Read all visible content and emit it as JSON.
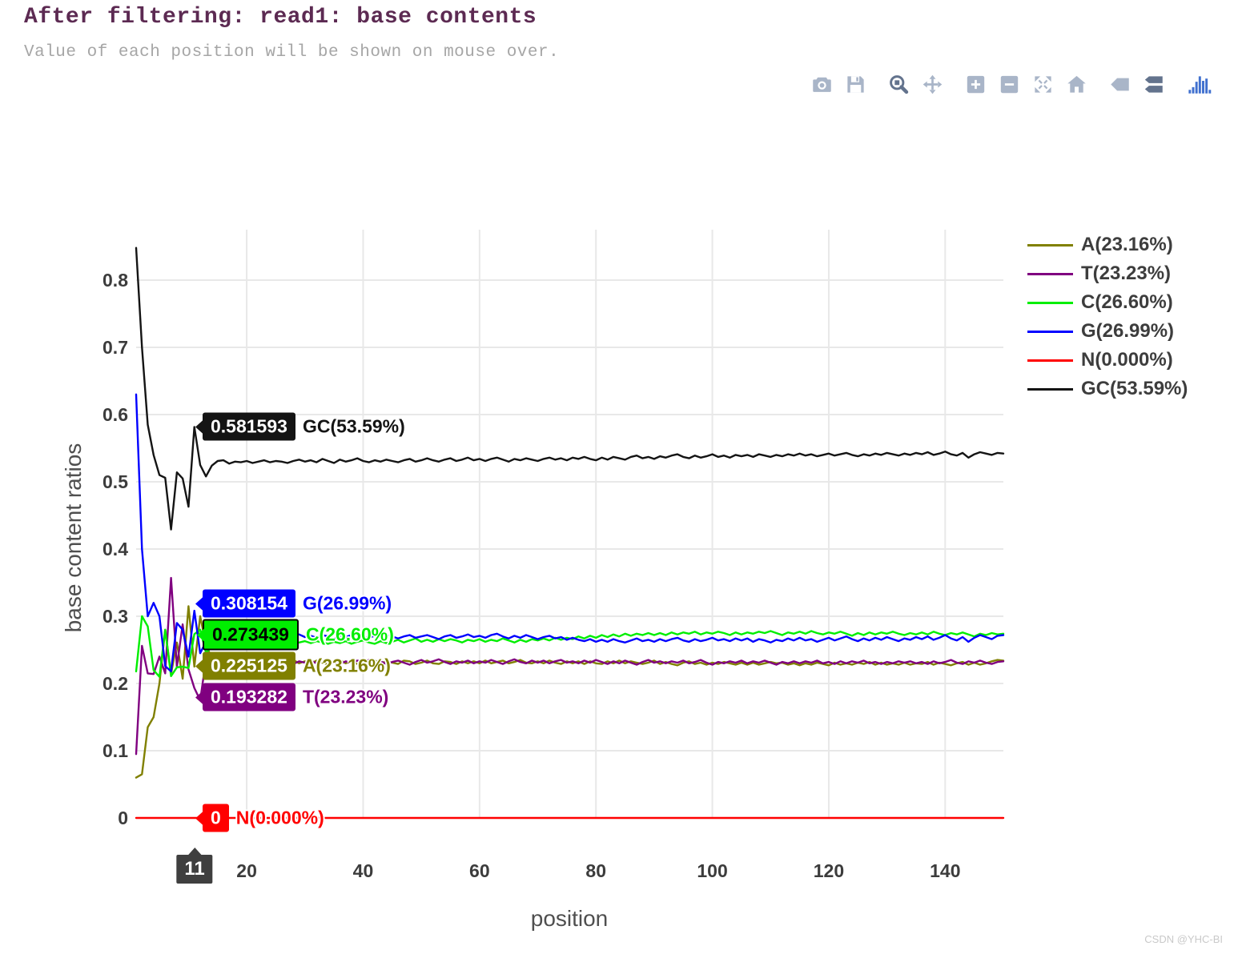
{
  "page": {
    "title": "After filtering: read1: base contents",
    "subtitle": "Value of each position will be shown on mouse over.",
    "watermark": "CSDN @YHC-BI"
  },
  "modebar": {
    "icons": [
      "camera-icon",
      "save-icon",
      "zoom-icon",
      "pan-icon",
      "zoom-in-icon",
      "zoom-out-icon",
      "autoscale-icon",
      "home-icon",
      "hover-closest-icon",
      "hover-compare-icon",
      "plotly-logo-icon"
    ],
    "active_icons": [
      "zoom-icon",
      "hover-compare-icon"
    ]
  },
  "chart_data": {
    "type": "line",
    "title": "After filtering: read1: base contents",
    "xlabel": "position",
    "ylabel": "base content ratios",
    "x_range": [
      1,
      150
    ],
    "ylim": [
      0,
      0.875
    ],
    "x_ticks": [
      20,
      40,
      60,
      80,
      100,
      120,
      140
    ],
    "y_ticks": [
      0,
      0.1,
      0.2,
      0.3,
      0.4,
      0.5,
      0.6,
      0.7,
      0.8
    ],
    "grid": true,
    "legend_position": "right",
    "series": [
      {
        "name": "A",
        "label": "A(23.16%)",
        "color": "#808000",
        "values": [
          0.06,
          0.065,
          0.135,
          0.15,
          0.2,
          0.28,
          0.214,
          0.261,
          0.207,
          0.315,
          0.2251,
          0.3,
          0.257,
          0.238,
          0.235,
          0.234,
          0.23,
          0.235,
          0.231,
          0.233,
          0.23,
          0.232,
          0.235,
          0.231,
          0.234,
          0.23,
          0.233,
          0.235,
          0.23,
          0.233,
          0.23,
          0.234,
          0.231,
          0.228,
          0.233,
          0.235,
          0.23,
          0.233,
          0.229,
          0.233,
          0.23,
          0.234,
          0.23,
          0.233,
          0.231,
          0.229,
          0.234,
          0.233,
          0.229,
          0.231,
          0.234,
          0.23,
          0.229,
          0.233,
          0.232,
          0.229,
          0.233,
          0.23,
          0.233,
          0.23,
          0.234,
          0.23,
          0.232,
          0.234,
          0.23,
          0.232,
          0.235,
          0.231,
          0.23,
          0.233,
          0.23,
          0.234,
          0.231,
          0.229,
          0.233,
          0.23,
          0.233,
          0.229,
          0.233,
          0.23,
          0.229,
          0.233,
          0.23,
          0.234,
          0.23,
          0.233,
          0.231,
          0.229,
          0.231,
          0.234,
          0.229,
          0.232,
          0.229,
          0.227,
          0.231,
          0.233,
          0.229,
          0.231,
          0.228,
          0.231,
          0.229,
          0.232,
          0.23,
          0.228,
          0.231,
          0.228,
          0.231,
          0.228,
          0.23,
          0.232,
          0.23,
          0.231,
          0.228,
          0.23,
          0.227,
          0.23,
          0.228,
          0.231,
          0.229,
          0.227,
          0.231,
          0.228,
          0.23,
          0.228,
          0.231,
          0.229,
          0.232,
          0.228,
          0.231,
          0.228,
          0.23,
          0.228,
          0.231,
          0.228,
          0.23,
          0.229,
          0.232,
          0.228,
          0.231,
          0.229,
          0.227,
          0.23,
          0.232,
          0.228,
          0.231,
          0.228,
          0.23,
          0.233,
          0.235,
          0.234
        ]
      },
      {
        "name": "T",
        "label": "T(23.23%)",
        "color": "#800080",
        "values": [
          0.095,
          0.256,
          0.215,
          0.214,
          0.24,
          0.215,
          0.357,
          0.225,
          0.288,
          0.221,
          0.1933,
          0.175,
          0.235,
          0.238,
          0.234,
          0.232,
          0.236,
          0.231,
          0.234,
          0.23,
          0.233,
          0.235,
          0.23,
          0.233,
          0.231,
          0.234,
          0.232,
          0.229,
          0.233,
          0.231,
          0.234,
          0.23,
          0.233,
          0.235,
          0.231,
          0.229,
          0.233,
          0.23,
          0.234,
          0.232,
          0.235,
          0.231,
          0.233,
          0.229,
          0.232,
          0.234,
          0.231,
          0.228,
          0.232,
          0.235,
          0.231,
          0.233,
          0.236,
          0.232,
          0.229,
          0.233,
          0.231,
          0.234,
          0.23,
          0.233,
          0.231,
          0.235,
          0.232,
          0.229,
          0.233,
          0.236,
          0.232,
          0.23,
          0.234,
          0.231,
          0.234,
          0.23,
          0.233,
          0.235,
          0.231,
          0.233,
          0.23,
          0.234,
          0.231,
          0.235,
          0.232,
          0.229,
          0.233,
          0.23,
          0.234,
          0.231,
          0.228,
          0.232,
          0.235,
          0.231,
          0.233,
          0.23,
          0.233,
          0.231,
          0.234,
          0.23,
          0.232,
          0.235,
          0.231,
          0.228,
          0.232,
          0.23,
          0.233,
          0.231,
          0.234,
          0.23,
          0.233,
          0.231,
          0.234,
          0.231,
          0.228,
          0.232,
          0.23,
          0.233,
          0.23,
          0.233,
          0.231,
          0.234,
          0.23,
          0.232,
          0.229,
          0.233,
          0.23,
          0.233,
          0.231,
          0.234,
          0.23,
          0.232,
          0.229,
          0.232,
          0.23,
          0.233,
          0.231,
          0.233,
          0.23,
          0.232,
          0.229,
          0.233,
          0.23,
          0.232,
          0.235,
          0.231,
          0.229,
          0.233,
          0.231,
          0.234,
          0.231,
          0.229,
          0.232,
          0.233
        ]
      },
      {
        "name": "C",
        "label": "C(26.60%)",
        "color": "#00ee00",
        "values": [
          0.218,
          0.3,
          0.285,
          0.22,
          0.21,
          0.28,
          0.211,
          0.224,
          0.225,
          0.223,
          0.2734,
          0.28,
          0.246,
          0.254,
          0.259,
          0.261,
          0.258,
          0.26,
          0.257,
          0.261,
          0.259,
          0.263,
          0.26,
          0.258,
          0.262,
          0.259,
          0.262,
          0.258,
          0.261,
          0.263,
          0.26,
          0.263,
          0.261,
          0.259,
          0.262,
          0.26,
          0.263,
          0.259,
          0.262,
          0.264,
          0.261,
          0.259,
          0.263,
          0.26,
          0.262,
          0.265,
          0.261,
          0.264,
          0.267,
          0.262,
          0.265,
          0.262,
          0.266,
          0.263,
          0.266,
          0.264,
          0.261,
          0.265,
          0.263,
          0.266,
          0.262,
          0.265,
          0.263,
          0.267,
          0.264,
          0.261,
          0.265,
          0.262,
          0.266,
          0.264,
          0.267,
          0.264,
          0.268,
          0.265,
          0.268,
          0.266,
          0.27,
          0.267,
          0.271,
          0.268,
          0.272,
          0.269,
          0.273,
          0.27,
          0.274,
          0.271,
          0.274,
          0.272,
          0.275,
          0.272,
          0.275,
          0.272,
          0.276,
          0.273,
          0.276,
          0.274,
          0.277,
          0.273,
          0.276,
          0.274,
          0.277,
          0.275,
          0.272,
          0.276,
          0.273,
          0.276,
          0.274,
          0.277,
          0.275,
          0.278,
          0.275,
          0.272,
          0.276,
          0.274,
          0.277,
          0.274,
          0.278,
          0.275,
          0.273,
          0.276,
          0.274,
          0.277,
          0.274,
          0.271,
          0.275,
          0.272,
          0.276,
          0.273,
          0.276,
          0.274,
          0.277,
          0.274,
          0.272,
          0.275,
          0.273,
          0.276,
          0.273,
          0.277,
          0.274,
          0.272,
          0.275,
          0.273,
          0.276,
          0.273,
          0.27,
          0.274,
          0.272,
          0.275,
          0.273,
          0.274
        ]
      },
      {
        "name": "G",
        "label": "G(26.99%)",
        "color": "#0000ff",
        "values": [
          0.63,
          0.4,
          0.3,
          0.32,
          0.3,
          0.226,
          0.218,
          0.29,
          0.28,
          0.24,
          0.3082,
          0.245,
          0.262,
          0.27,
          0.272,
          0.27,
          0.268,
          0.272,
          0.269,
          0.273,
          0.27,
          0.268,
          0.271,
          0.269,
          0.272,
          0.27,
          0.267,
          0.271,
          0.273,
          0.269,
          0.271,
          0.268,
          0.272,
          0.27,
          0.267,
          0.271,
          0.269,
          0.272,
          0.274,
          0.27,
          0.268,
          0.271,
          0.269,
          0.272,
          0.27,
          0.267,
          0.27,
          0.272,
          0.268,
          0.27,
          0.272,
          0.269,
          0.266,
          0.27,
          0.272,
          0.268,
          0.27,
          0.273,
          0.269,
          0.271,
          0.268,
          0.272,
          0.274,
          0.27,
          0.267,
          0.271,
          0.268,
          0.272,
          0.269,
          0.266,
          0.269,
          0.271,
          0.267,
          0.269,
          0.265,
          0.268,
          0.265,
          0.263,
          0.266,
          0.262,
          0.265,
          0.262,
          0.266,
          0.263,
          0.261,
          0.264,
          0.267,
          0.263,
          0.265,
          0.262,
          0.266,
          0.263,
          0.266,
          0.268,
          0.264,
          0.262,
          0.266,
          0.263,
          0.265,
          0.268,
          0.264,
          0.266,
          0.263,
          0.267,
          0.264,
          0.267,
          0.262,
          0.266,
          0.264,
          0.261,
          0.265,
          0.263,
          0.267,
          0.264,
          0.268,
          0.264,
          0.266,
          0.262,
          0.265,
          0.268,
          0.264,
          0.267,
          0.27,
          0.266,
          0.263,
          0.267,
          0.264,
          0.268,
          0.265,
          0.269,
          0.266,
          0.263,
          0.267,
          0.265,
          0.269,
          0.266,
          0.27,
          0.265,
          0.268,
          0.272,
          0.267,
          0.264,
          0.269,
          0.262,
          0.268,
          0.272,
          0.269,
          0.266,
          0.271,
          0.272
        ]
      },
      {
        "name": "N",
        "label": "N(0.000%)",
        "color": "#ff0000",
        "values": [
          0,
          0,
          0,
          0,
          0,
          0,
          0,
          0,
          0,
          0,
          0,
          0,
          0,
          0,
          0,
          0,
          0,
          0,
          0,
          0,
          0,
          0,
          0,
          0,
          0,
          0,
          0,
          0,
          0,
          0,
          0,
          0,
          0,
          0,
          0,
          0,
          0,
          0,
          0,
          0,
          0,
          0,
          0,
          0,
          0,
          0,
          0,
          0,
          0,
          0,
          0,
          0,
          0,
          0,
          0,
          0,
          0,
          0,
          0,
          0,
          0,
          0,
          0,
          0,
          0,
          0,
          0,
          0,
          0,
          0,
          0,
          0,
          0,
          0,
          0,
          0,
          0,
          0,
          0,
          0,
          0,
          0,
          0,
          0,
          0,
          0,
          0,
          0,
          0,
          0,
          0,
          0,
          0,
          0,
          0,
          0,
          0,
          0,
          0,
          0,
          0,
          0,
          0,
          0,
          0,
          0,
          0,
          0,
          0,
          0,
          0,
          0,
          0,
          0,
          0,
          0,
          0,
          0,
          0,
          0,
          0,
          0,
          0,
          0,
          0,
          0,
          0,
          0,
          0,
          0,
          0,
          0,
          0,
          0,
          0,
          0,
          0,
          0,
          0,
          0,
          0,
          0,
          0,
          0,
          0,
          0,
          0,
          0,
          0,
          0
        ]
      },
      {
        "name": "GC",
        "label": "GC(53.59%)",
        "color": "#141414",
        "values": [
          0.848,
          0.7,
          0.585,
          0.54,
          0.51,
          0.506,
          0.429,
          0.514,
          0.505,
          0.463,
          0.5816,
          0.525,
          0.508,
          0.524,
          0.531,
          0.532,
          0.527,
          0.53,
          0.529,
          0.531,
          0.528,
          0.53,
          0.532,
          0.529,
          0.531,
          0.53,
          0.528,
          0.531,
          0.533,
          0.53,
          0.532,
          0.529,
          0.534,
          0.531,
          0.528,
          0.533,
          0.53,
          0.532,
          0.535,
          0.531,
          0.529,
          0.532,
          0.53,
          0.533,
          0.531,
          0.529,
          0.532,
          0.534,
          0.53,
          0.532,
          0.535,
          0.532,
          0.53,
          0.533,
          0.535,
          0.531,
          0.533,
          0.536,
          0.532,
          0.534,
          0.531,
          0.534,
          0.536,
          0.533,
          0.53,
          0.534,
          0.532,
          0.535,
          0.533,
          0.531,
          0.534,
          0.536,
          0.533,
          0.535,
          0.532,
          0.536,
          0.534,
          0.537,
          0.534,
          0.532,
          0.536,
          0.533,
          0.537,
          0.535,
          0.533,
          0.537,
          0.539,
          0.535,
          0.537,
          0.534,
          0.538,
          0.536,
          0.539,
          0.541,
          0.537,
          0.535,
          0.539,
          0.536,
          0.538,
          0.541,
          0.537,
          0.539,
          0.536,
          0.54,
          0.538,
          0.54,
          0.537,
          0.541,
          0.539,
          0.537,
          0.54,
          0.538,
          0.541,
          0.539,
          0.542,
          0.539,
          0.541,
          0.538,
          0.54,
          0.542,
          0.539,
          0.541,
          0.543,
          0.54,
          0.538,
          0.541,
          0.539,
          0.542,
          0.54,
          0.543,
          0.541,
          0.539,
          0.542,
          0.54,
          0.543,
          0.541,
          0.544,
          0.54,
          0.542,
          0.545,
          0.541,
          0.539,
          0.543,
          0.536,
          0.541,
          0.544,
          0.542,
          0.54,
          0.543,
          0.542
        ]
      }
    ],
    "hover": {
      "position": 11,
      "x_label": "11",
      "entries": [
        {
          "series": "GC",
          "value_text": "0.581593",
          "value": 0.581593,
          "label": "GC(53.59%)",
          "color": "#141414",
          "text_color": "#ffffff"
        },
        {
          "series": "G",
          "value_text": "0.308154",
          "value": 0.308154,
          "label": "G(26.99%)",
          "color": "#0000ff",
          "text_color": "#ffffff"
        },
        {
          "series": "C",
          "value_text": "0.273439",
          "value": 0.273439,
          "label": "C(26.60%)",
          "color": "#00ee00",
          "text_color": "#000000",
          "border": "#000000"
        },
        {
          "series": "A",
          "value_text": "0.225125",
          "value": 0.225125,
          "label": "A(23.16%)",
          "color": "#808000",
          "text_color": "#ffffff"
        },
        {
          "series": "T",
          "value_text": "0.193282",
          "value": 0.193282,
          "label": "T(23.23%)",
          "color": "#800080",
          "text_color": "#ffffff"
        },
        {
          "series": "N",
          "value_text": "0",
          "value": 0,
          "label": "N(0.000%)",
          "color": "#ff0000",
          "text_color": "#ffffff"
        }
      ]
    }
  }
}
